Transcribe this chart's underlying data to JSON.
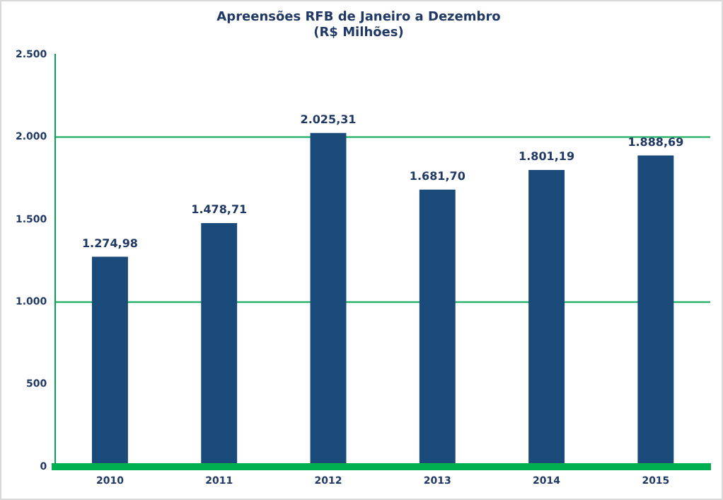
{
  "chart_data": {
    "type": "bar",
    "title": "Apreensões RFB de Janeiro a Dezembro",
    "subtitle": "(R$ Milhões)",
    "categories": [
      "2010",
      "2011",
      "2012",
      "2013",
      "2014",
      "2015"
    ],
    "values": [
      1274.98,
      1478.71,
      2025.31,
      1681.7,
      1801.19,
      1888.69
    ],
    "value_labels": [
      "1.274,98",
      "1.478,71",
      "2.025,31",
      "1.681,70",
      "1.801,19",
      "1.888,69"
    ],
    "color": "#1a4a7a",
    "ylim": [
      0,
      2500
    ],
    "yticks": [
      0,
      500,
      {
        "value": 1000,
        "label": "1.000"
      },
      {
        "value": 1500,
        "label": "1.500"
      },
      {
        "value": 2000,
        "label": "2.000"
      },
      {
        "value": 2500,
        "label": "2.500"
      }
    ],
    "ref_lines": [
      {
        "axis": "y",
        "value": 1000,
        "color": "#00a651"
      },
      {
        "axis": "y",
        "value": 2000,
        "color": "#00a651"
      }
    ],
    "grid": false,
    "legend": false
  }
}
